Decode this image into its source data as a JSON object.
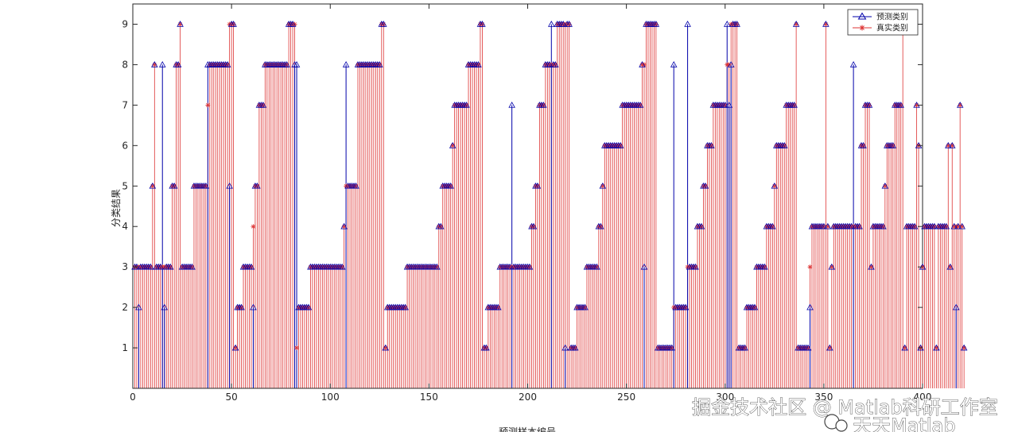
{
  "chart_data": {
    "type": "stem",
    "title": "",
    "xlabel": "预测样本编号",
    "ylabel": "分类结果",
    "xlim": [
      0,
      400
    ],
    "ylim": [
      0,
      9.5
    ],
    "xticks": [
      0,
      50,
      100,
      150,
      200,
      250,
      300,
      350,
      400
    ],
    "yticks": [
      1,
      2,
      3,
      4,
      5,
      6,
      7,
      8,
      9
    ],
    "legend_position": "top-right",
    "series": [
      {
        "name": "预测类别",
        "marker": "triangle",
        "color": "#0000aa",
        "values": [
          3,
          3,
          2,
          3,
          3,
          3,
          3,
          3,
          3,
          5,
          8,
          3,
          3,
          3,
          8,
          2,
          3,
          3,
          3,
          5,
          5,
          8,
          8,
          9,
          3,
          3,
          3,
          3,
          3,
          3,
          5,
          5,
          5,
          5,
          5,
          5,
          5,
          8,
          8,
          8,
          8,
          8,
          8,
          8,
          8,
          8,
          8,
          8,
          5,
          9,
          9,
          1,
          2,
          2,
          2,
          3,
          3,
          3,
          3,
          3,
          2,
          5,
          5,
          7,
          7,
          7,
          8,
          8,
          8,
          8,
          8,
          8,
          8,
          8,
          8,
          8,
          8,
          8,
          9,
          9,
          9,
          8,
          8,
          2,
          2,
          2,
          2,
          2,
          2,
          3,
          3,
          3,
          3,
          3,
          3,
          3,
          3,
          3,
          3,
          3,
          3,
          3,
          3,
          3,
          3,
          3,
          4,
          8,
          5,
          5,
          5,
          5,
          5,
          8,
          8,
          8,
          8,
          8,
          8,
          8,
          8,
          8,
          8,
          8,
          8,
          9,
          9,
          1,
          2,
          2,
          2,
          2,
          2,
          2,
          2,
          2,
          2,
          2,
          3,
          3,
          3,
          3,
          3,
          3,
          3,
          3,
          3,
          3,
          3,
          3,
          3,
          3,
          3,
          3,
          4,
          4,
          5,
          5,
          5,
          5,
          5,
          6,
          7,
          7,
          7,
          7,
          7,
          7,
          7,
          8,
          8,
          8,
          8,
          8,
          8,
          9,
          9,
          1,
          1,
          2,
          2,
          2,
          2,
          2,
          2,
          3,
          3,
          3,
          3,
          3,
          3,
          7,
          3,
          3,
          3,
          3,
          3,
          3,
          3,
          3,
          3,
          4,
          4,
          5,
          5,
          7,
          7,
          7,
          8,
          8,
          8,
          9,
          8,
          8,
          9,
          9,
          9,
          9,
          1,
          9,
          9,
          1,
          1,
          1,
          2,
          2,
          2,
          2,
          2,
          3,
          3,
          3,
          3,
          3,
          3,
          4,
          4,
          5,
          6,
          6,
          6,
          6,
          6,
          6,
          6,
          6,
          6,
          7,
          7,
          7,
          7,
          7,
          7,
          7,
          7,
          7,
          7,
          8,
          3,
          9,
          9,
          9,
          9,
          9,
          9,
          1,
          1,
          1,
          1,
          1,
          1,
          1,
          1,
          8,
          2,
          2,
          2,
          2,
          2,
          2,
          9,
          3,
          3,
          3,
          3,
          4,
          4,
          4,
          5,
          5,
          6,
          6,
          6,
          7,
          7,
          7,
          7,
          7,
          7,
          7,
          9,
          7,
          8,
          9,
          9,
          9,
          1,
          1,
          1,
          1,
          2,
          2,
          2,
          2,
          2,
          3,
          3,
          3,
          3,
          3,
          4,
          4,
          4,
          4,
          5,
          6,
          6,
          6,
          6,
          6,
          7,
          7,
          7,
          7,
          7,
          9,
          1,
          1,
          1,
          1,
          1,
          1,
          2,
          4,
          4,
          4,
          4,
          4,
          4,
          4,
          9,
          4,
          1,
          3,
          4,
          4,
          4,
          4,
          4,
          4,
          4,
          4,
          4,
          4,
          8,
          4,
          4,
          4,
          6,
          6,
          7,
          7,
          7,
          3,
          4,
          4,
          4,
          4,
          4,
          4,
          5,
          6,
          6,
          6,
          6,
          7,
          7,
          7,
          7,
          9,
          1,
          4,
          4,
          4,
          4,
          4,
          7,
          6,
          1,
          3,
          4,
          4,
          4,
          4,
          4,
          4,
          1,
          4,
          4,
          4,
          4,
          4,
          6,
          3,
          6,
          4,
          2,
          4,
          7,
          4,
          1
        ],
        "count_note": ""
      },
      {
        "name": "真实类别",
        "marker": "asterisk",
        "color": "#dd3333",
        "values": [
          3,
          3,
          3,
          3,
          3,
          3,
          3,
          3,
          3,
          5,
          8,
          3,
          3,
          3,
          3,
          3,
          3,
          3,
          3,
          5,
          5,
          8,
          8,
          9,
          3,
          3,
          3,
          3,
          3,
          3,
          5,
          5,
          5,
          5,
          5,
          5,
          5,
          7,
          8,
          8,
          8,
          8,
          8,
          8,
          8,
          8,
          8,
          8,
          9,
          9,
          9,
          1,
          2,
          2,
          2,
          3,
          3,
          3,
          3,
          3,
          4,
          5,
          5,
          7,
          7,
          7,
          8,
          8,
          8,
          8,
          8,
          8,
          8,
          8,
          8,
          8,
          8,
          8,
          9,
          9,
          9,
          9,
          1,
          2,
          2,
          2,
          2,
          2,
          2,
          3,
          3,
          3,
          3,
          3,
          3,
          3,
          3,
          3,
          3,
          3,
          3,
          3,
          3,
          3,
          3,
          3,
          4,
          5,
          5,
          5,
          5,
          5,
          5,
          8,
          8,
          8,
          8,
          8,
          8,
          8,
          8,
          8,
          8,
          8,
          8,
          9,
          9,
          1,
          2,
          2,
          2,
          2,
          2,
          2,
          2,
          2,
          2,
          2,
          3,
          3,
          3,
          3,
          3,
          3,
          3,
          3,
          3,
          3,
          3,
          3,
          3,
          3,
          3,
          3,
          4,
          4,
          5,
          5,
          5,
          5,
          5,
          6,
          7,
          7,
          7,
          7,
          7,
          7,
          7,
          8,
          8,
          8,
          8,
          8,
          8,
          9,
          9,
          1,
          1,
          2,
          2,
          2,
          2,
          2,
          2,
          3,
          3,
          3,
          3,
          3,
          3,
          3,
          3,
          3,
          3,
          3,
          3,
          3,
          3,
          3,
          3,
          4,
          4,
          5,
          5,
          7,
          7,
          7,
          8,
          8,
          8,
          8,
          8,
          8,
          9,
          9,
          9,
          9,
          9,
          9,
          9,
          1,
          1,
          1,
          2,
          2,
          2,
          2,
          2,
          3,
          3,
          3,
          3,
          3,
          3,
          4,
          4,
          5,
          6,
          6,
          6,
          6,
          6,
          6,
          6,
          6,
          6,
          7,
          7,
          7,
          7,
          7,
          7,
          7,
          7,
          7,
          7,
          8,
          8,
          9,
          9,
          9,
          9,
          9,
          9,
          1,
          1,
          1,
          1,
          1,
          1,
          1,
          1,
          2,
          2,
          2,
          2,
          2,
          2,
          2,
          3,
          3,
          3,
          3,
          3,
          4,
          4,
          4,
          5,
          5,
          6,
          6,
          6,
          7,
          7,
          7,
          7,
          7,
          7,
          7,
          8,
          8,
          9,
          9,
          9,
          9,
          1,
          1,
          1,
          1,
          2,
          2,
          2,
          2,
          2,
          3,
          3,
          3,
          3,
          3,
          4,
          4,
          4,
          4,
          5,
          6,
          6,
          6,
          6,
          6,
          7,
          7,
          7,
          7,
          7,
          9,
          1,
          1,
          1,
          1,
          1,
          1,
          3,
          4,
          4,
          4,
          4,
          4,
          4,
          4,
          9,
          4,
          1,
          3,
          4,
          4,
          4,
          4,
          4,
          4,
          4,
          4,
          4,
          4,
          4,
          4,
          4,
          4,
          6,
          6,
          7,
          7,
          7,
          3,
          4,
          4,
          4,
          4,
          4,
          4,
          5,
          6,
          6,
          6,
          6,
          7,
          7,
          7,
          7,
          9,
          1,
          4,
          4,
          4,
          4,
          4,
          7,
          6,
          1,
          3,
          4,
          4,
          4,
          4,
          4,
          4,
          1,
          4,
          4,
          4,
          4,
          4,
          6,
          3,
          6,
          4,
          4,
          4,
          7,
          4,
          1
        ]
      }
    ]
  },
  "watermark": {
    "line1": "掘金技术社区 @ Matlab科研工作室",
    "line2": "天天Matlab"
  }
}
